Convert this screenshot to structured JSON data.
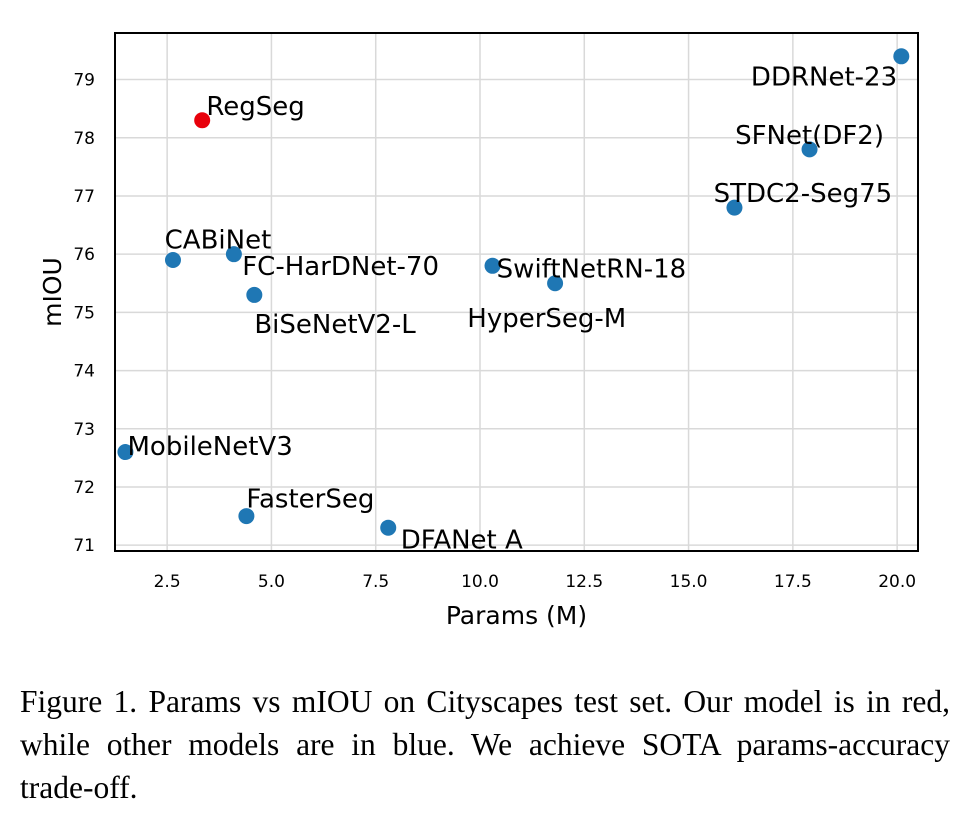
{
  "chart_data": {
    "type": "scatter",
    "xlabel": "Params (M)",
    "ylabel": "mIOU",
    "xlim": [
      1.25,
      20.5
    ],
    "ylim": [
      70.9,
      79.8
    ],
    "xticks": [
      2.5,
      5.0,
      7.5,
      10.0,
      12.5,
      15.0,
      17.5,
      20.0
    ],
    "xtick_labels": [
      "2.5",
      "5.0",
      "7.5",
      "10.0",
      "12.5",
      "15.0",
      "17.5",
      "20.0"
    ],
    "yticks": [
      71,
      72,
      73,
      74,
      75,
      76,
      77,
      78,
      79
    ],
    "ytick_labels": [
      "71",
      "72",
      "73",
      "74",
      "75",
      "76",
      "77",
      "78",
      "79"
    ],
    "grid": true,
    "colors": {
      "ours": "#e8000b",
      "others": "#1f77b4"
    },
    "points": [
      {
        "label": "RegSeg",
        "x": 3.34,
        "y": 78.3,
        "color": "ours",
        "anchor": "start",
        "dx": 0.1,
        "dy": 0.25
      },
      {
        "label": "DDRNet-23",
        "x": 20.1,
        "y": 79.4,
        "color": "others",
        "anchor": "end",
        "dx": -0.1,
        "dy": -0.35
      },
      {
        "label": "SFNet(DF2)",
        "x": 17.9,
        "y": 77.8,
        "color": "others",
        "anchor": "middle",
        "dx": 0.0,
        "dy": 0.25
      },
      {
        "label": "STDC2-Seg75",
        "x": 16.1,
        "y": 76.8,
        "color": "others",
        "anchor": "start",
        "dx": -0.5,
        "dy": 0.25
      },
      {
        "label": "CABiNet",
        "x": 2.64,
        "y": 75.9,
        "color": "others",
        "anchor": "start",
        "dx": -0.2,
        "dy": 0.35
      },
      {
        "label": "FC-HarDNet-70",
        "x": 4.1,
        "y": 76.0,
        "color": "others",
        "anchor": "start",
        "dx": 0.2,
        "dy": -0.2
      },
      {
        "label": "BiSeNetV2-L",
        "x": 4.59,
        "y": 75.3,
        "color": "others",
        "anchor": "start",
        "dx": 0.0,
        "dy": -0.5
      },
      {
        "label": "SwiftNetRN-18",
        "x": 10.3,
        "y": 75.8,
        "color": "others",
        "anchor": "start",
        "dx": 0.1,
        "dy": -0.05
      },
      {
        "label": "HyperSeg-M",
        "x": 11.8,
        "y": 75.5,
        "color": "others",
        "anchor": "middle",
        "dx": -0.2,
        "dy": -0.6
      },
      {
        "label": "MobileNetV3",
        "x": 1.5,
        "y": 72.6,
        "color": "others",
        "anchor": "start",
        "dx": 0.05,
        "dy": 0.1
      },
      {
        "label": "FasterSeg",
        "x": 4.4,
        "y": 71.5,
        "color": "others",
        "anchor": "start",
        "dx": 0.0,
        "dy": 0.3
      },
      {
        "label": "DFANet A",
        "x": 7.8,
        "y": 71.3,
        "color": "others",
        "anchor": "start",
        "dx": 0.3,
        "dy": -0.2
      }
    ]
  },
  "caption": "Figure 1. Params vs mIOU on Cityscapes test set. Our model is in red, while other models are in blue. We achieve SOTA params-accuracy trade-off."
}
